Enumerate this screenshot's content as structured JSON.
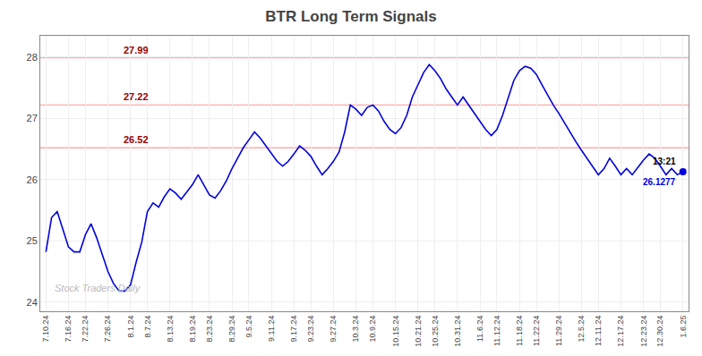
{
  "chart_data": {
    "type": "line",
    "title": "BTR Long Term Signals",
    "categories": [
      "7.10.24",
      null,
      null,
      null,
      "7.16.24",
      null,
      null,
      "7.22.24",
      null,
      null,
      null,
      "7.26.24",
      null,
      null,
      null,
      "8.1.24",
      null,
      null,
      "8.7.24",
      null,
      null,
      null,
      "8.13.24",
      null,
      null,
      null,
      "8.19.24",
      null,
      null,
      "8.23.24",
      null,
      null,
      null,
      "8.29.24",
      null,
      null,
      "9.5.24",
      null,
      null,
      null,
      "9.11.24",
      null,
      null,
      null,
      "9.17.24",
      null,
      null,
      "9.23.24",
      null,
      null,
      null,
      "9.27.24",
      null,
      null,
      null,
      "10.3.24",
      null,
      null,
      "10.9.24",
      null,
      null,
      null,
      "10.15.24",
      null,
      null,
      null,
      "10.21.24",
      null,
      null,
      "10.25.24",
      null,
      null,
      null,
      "10.31.24",
      null,
      null,
      null,
      "11.6.24",
      null,
      null,
      "11.12.24",
      null,
      null,
      null,
      "11.18.24",
      null,
      null,
      "11.22.24",
      null,
      null,
      null,
      "11.29.24",
      null,
      null,
      null,
      "12.5.24",
      null,
      null,
      "12.11.24",
      null,
      null,
      null,
      "12.17.24",
      null,
      null,
      null,
      "12.23.24",
      null,
      null,
      "12.30.24",
      null,
      null,
      null,
      "1.6.25"
    ],
    "values": [
      24.82,
      25.38,
      25.48,
      25.18,
      24.9,
      24.82,
      24.82,
      25.1,
      25.28,
      25.05,
      24.78,
      24.5,
      24.3,
      24.18,
      24.18,
      24.28,
      24.65,
      24.98,
      25.48,
      25.62,
      25.55,
      25.72,
      25.85,
      25.78,
      25.68,
      25.8,
      25.92,
      26.08,
      25.92,
      25.75,
      25.7,
      25.82,
      25.98,
      26.18,
      26.35,
      26.52,
      26.65,
      26.78,
      26.68,
      26.55,
      26.42,
      26.3,
      26.22,
      26.3,
      26.42,
      26.55,
      26.48,
      26.38,
      26.22,
      26.08,
      26.18,
      26.3,
      26.45,
      26.78,
      27.22,
      27.15,
      27.05,
      27.18,
      27.22,
      27.12,
      26.95,
      26.82,
      26.75,
      26.85,
      27.05,
      27.35,
      27.55,
      27.75,
      27.88,
      27.78,
      27.65,
      27.48,
      27.35,
      27.22,
      27.35,
      27.22,
      27.08,
      26.95,
      26.82,
      26.72,
      26.82,
      27.05,
      27.35,
      27.62,
      27.78,
      27.85,
      27.82,
      27.72,
      27.55,
      27.38,
      27.22,
      27.08,
      26.92,
      26.78,
      26.62,
      26.48,
      26.35,
      26.22,
      26.08,
      26.18,
      26.35,
      26.22,
      26.08,
      26.18,
      26.08,
      26.2,
      26.32,
      26.42,
      26.35,
      26.22,
      26.08,
      26.18,
      26.08,
      26.1277
    ],
    "color": "#0000dd",
    "reference_lines": [
      {
        "value": 27.99,
        "label": "27.99"
      },
      {
        "value": 27.22,
        "label": "27.22"
      },
      {
        "value": 26.52,
        "label": "26.52"
      }
    ],
    "annotations": [
      {
        "text": "13:21",
        "x": 113,
        "y": 26.1277
      },
      {
        "text": "26.1277",
        "x": 113,
        "y": 26.1277
      },
      {
        "text": "Stock Traders Daily"
      }
    ],
    "ylim": [
      23.85,
      28.35
    ],
    "yticks": [
      24,
      25,
      26,
      27,
      28
    ],
    "grid": true
  }
}
